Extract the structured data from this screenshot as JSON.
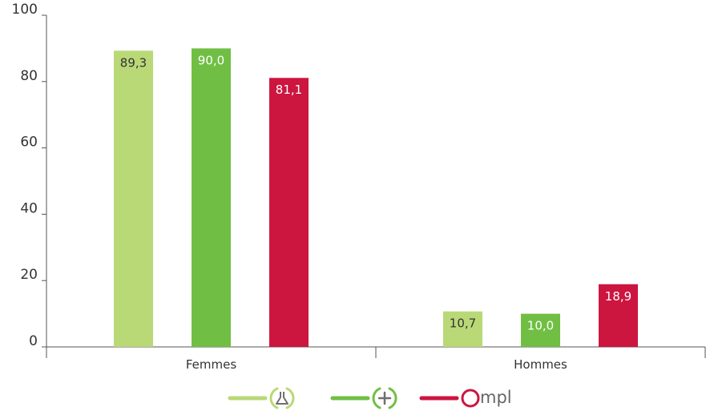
{
  "chart_data": {
    "type": "bar",
    "categories": [
      "Femmes",
      "Hommes"
    ],
    "series": [
      {
        "values": [
          89.3,
          10.7
        ],
        "labels": [
          "89,3",
          "10,7"
        ],
        "color": "#b9d977",
        "legend_icon": "flask-icon"
      },
      {
        "values": [
          90.0,
          10.0
        ],
        "labels": [
          "90,0",
          "10,0"
        ],
        "color": "#70bf44",
        "legend_icon": "plus-circle-icon"
      },
      {
        "values": [
          81.1,
          18.9
        ],
        "labels": [
          "81,1",
          "18,9"
        ],
        "color": "#cc153f",
        "legend_icon": "ompl-logo"
      }
    ],
    "ylim": [
      0,
      100
    ],
    "yticks": [
      0,
      20,
      40,
      60,
      80,
      100
    ],
    "grid": false,
    "legend_position": "bottom",
    "legend_logo_text": "Ompl"
  }
}
